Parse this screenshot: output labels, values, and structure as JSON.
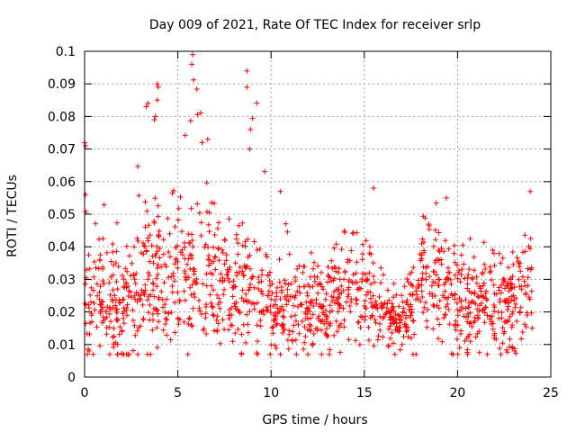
{
  "chart_data": {
    "type": "scatter",
    "title": "Day 009 of 2021, Rate Of TEC Index for receiver srlp",
    "xlabel": "GPS time / hours",
    "ylabel": "ROTI / TECUs",
    "xlim": [
      0,
      25
    ],
    "ylim": [
      0,
      0.1
    ],
    "x_ticks": [
      0,
      5,
      10,
      15,
      20,
      25
    ],
    "x_tick_labels": [
      "0",
      "5",
      "10",
      "15",
      "20",
      "25"
    ],
    "y_ticks": [
      0,
      0.01,
      0.02,
      0.03,
      0.04,
      0.05,
      0.06,
      0.07,
      0.08,
      0.09,
      0.1
    ],
    "y_tick_labels": [
      "0",
      "0.01",
      "0.02",
      "0.03",
      "0.04",
      "0.05",
      "0.06",
      "0.07",
      "0.08",
      "0.09",
      "0.1"
    ],
    "grid": true,
    "marker": "+",
    "marker_color": "#ff0000",
    "point_count_estimate": 1400,
    "series": [
      {
        "name": "ROTI",
        "envelope": [
          {
            "x": 0,
            "mean": 0.022,
            "spread": 0.008,
            "max": 0.072
          },
          {
            "x": 1,
            "mean": 0.024,
            "spread": 0.009,
            "max": 0.063
          },
          {
            "x": 2,
            "mean": 0.022,
            "spread": 0.008,
            "max": 0.045
          },
          {
            "x": 3,
            "mean": 0.03,
            "spread": 0.011,
            "max": 0.084
          },
          {
            "x": 4,
            "mean": 0.03,
            "spread": 0.01,
            "max": 0.09
          },
          {
            "x": 5,
            "mean": 0.028,
            "spread": 0.01,
            "max": 0.06
          },
          {
            "x": 6,
            "mean": 0.03,
            "spread": 0.01,
            "max": 0.099
          },
          {
            "x": 7,
            "mean": 0.03,
            "spread": 0.01,
            "max": 0.073
          },
          {
            "x": 8,
            "mean": 0.03,
            "spread": 0.01,
            "max": 0.067
          },
          {
            "x": 9,
            "mean": 0.027,
            "spread": 0.01,
            "max": 0.094
          },
          {
            "x": 10,
            "mean": 0.022,
            "spread": 0.008,
            "max": 0.057
          },
          {
            "x": 11,
            "mean": 0.02,
            "spread": 0.007,
            "max": 0.045
          },
          {
            "x": 12,
            "mean": 0.02,
            "spread": 0.007,
            "max": 0.04
          },
          {
            "x": 13,
            "mean": 0.023,
            "spread": 0.007,
            "max": 0.042
          },
          {
            "x": 14,
            "mean": 0.03,
            "spread": 0.008,
            "max": 0.05
          },
          {
            "x": 15,
            "mean": 0.026,
            "spread": 0.009,
            "max": 0.058
          },
          {
            "x": 16,
            "mean": 0.02,
            "spread": 0.005,
            "max": 0.035
          },
          {
            "x": 17,
            "mean": 0.016,
            "spread": 0.004,
            "max": 0.025
          },
          {
            "x": 18,
            "mean": 0.028,
            "spread": 0.009,
            "max": 0.05
          },
          {
            "x": 19,
            "mean": 0.03,
            "spread": 0.009,
            "max": 0.055
          },
          {
            "x": 20,
            "mean": 0.022,
            "spread": 0.008,
            "max": 0.045
          },
          {
            "x": 21,
            "mean": 0.022,
            "spread": 0.008,
            "max": 0.043
          },
          {
            "x": 22,
            "mean": 0.022,
            "spread": 0.008,
            "max": 0.04
          },
          {
            "x": 23,
            "mean": 0.024,
            "spread": 0.008,
            "max": 0.045
          },
          {
            "x": 24,
            "mean": 0.028,
            "spread": 0.009,
            "max": 0.057
          }
        ],
        "notable_points": [
          {
            "x": 0.0,
            "y": 0.072
          },
          {
            "x": 0.05,
            "y": 0.071
          },
          {
            "x": 0.05,
            "y": 0.056
          },
          {
            "x": 3.3,
            "y": 0.083
          },
          {
            "x": 3.4,
            "y": 0.084
          },
          {
            "x": 3.9,
            "y": 0.09
          },
          {
            "x": 3.95,
            "y": 0.089
          },
          {
            "x": 3.9,
            "y": 0.085
          },
          {
            "x": 3.8,
            "y": 0.08
          },
          {
            "x": 5.8,
            "y": 0.099
          },
          {
            "x": 5.75,
            "y": 0.096
          },
          {
            "x": 6.3,
            "y": 0.072
          },
          {
            "x": 6.6,
            "y": 0.073
          },
          {
            "x": 8.7,
            "y": 0.094
          },
          {
            "x": 8.7,
            "y": 0.089
          },
          {
            "x": 8.9,
            "y": 0.076
          },
          {
            "x": 8.85,
            "y": 0.07
          },
          {
            "x": 10.5,
            "y": 0.057
          },
          {
            "x": 15.5,
            "y": 0.058
          },
          {
            "x": 19.4,
            "y": 0.055
          },
          {
            "x": 23.9,
            "y": 0.057
          }
        ]
      }
    ]
  }
}
